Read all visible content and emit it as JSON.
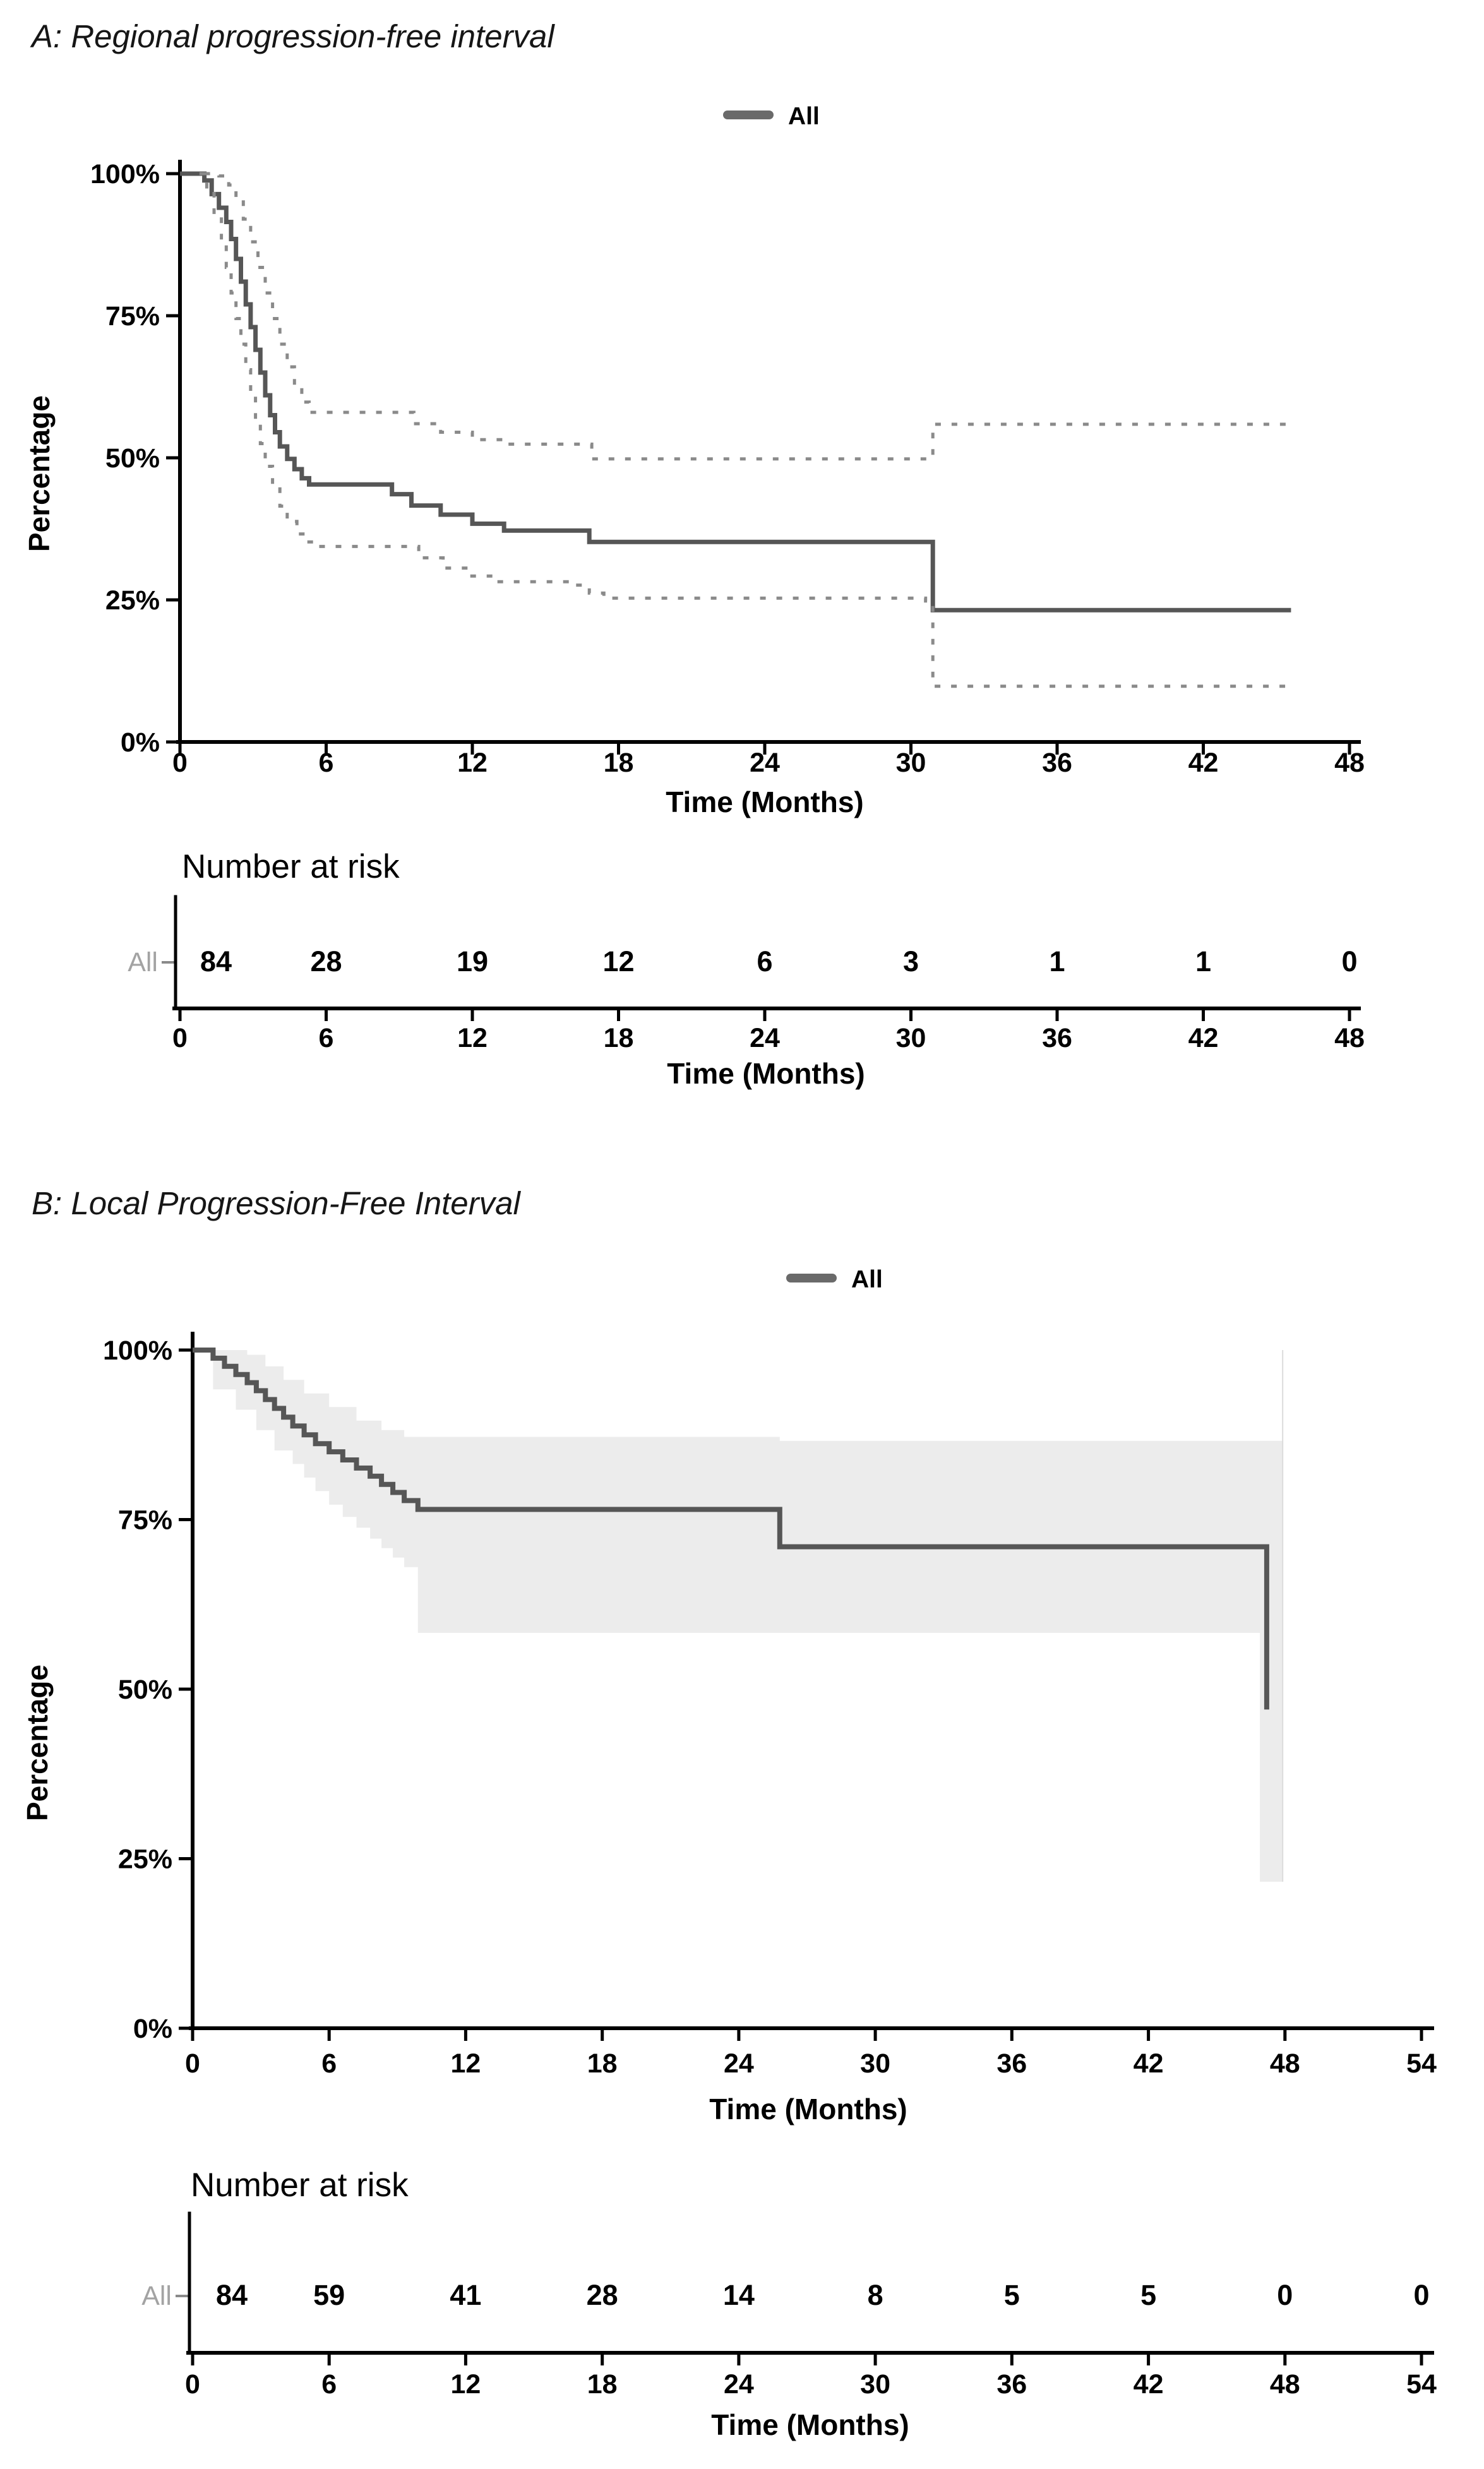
{
  "panels": [
    {
      "panel_label": "A",
      "title": "A: Regional progression-free interval",
      "legend": {
        "label": "All"
      },
      "y_axis": {
        "label": "Percentage",
        "suffix": "%"
      },
      "x_axis": {
        "label": "Time (Months)"
      },
      "risk_table": {
        "header": "Number at risk",
        "row_label": "All"
      }
    },
    {
      "panel_label": "B",
      "title": "B: Local Progression-Free Interval",
      "legend": {
        "label": "All"
      },
      "y_axis": {
        "label": "Percentage",
        "suffix": "%"
      },
      "x_axis": {
        "label": "Time (Months)"
      },
      "risk_table": {
        "header": "Number at risk",
        "row_label": "All"
      }
    }
  ],
  "colors": {
    "main_curve": "#565656",
    "ci_dashed": "#8a8a8a",
    "ci_band": "#ececec",
    "band_edge": "#dcdcdc",
    "risk_row_label": "#a3a3a3",
    "axis": "#000000"
  },
  "chart_data": [
    {
      "type": "line",
      "title": "A: Regional progression-free interval",
      "xlabel": "Time (Months)",
      "ylabel": "Percentage",
      "xlim": [
        0,
        48
      ],
      "ylim": [
        0,
        100
      ],
      "xticks": [
        0,
        6,
        12,
        18,
        24,
        30,
        36,
        42,
        48
      ],
      "yticks": [
        0,
        25,
        50,
        75,
        100
      ],
      "grid": false,
      "legend_position": "top-center",
      "legend": [
        "All"
      ],
      "series": [
        {
          "name": "All (Kaplan-Meier estimate)",
          "style": "solid",
          "points": [
            [
              0,
              100
            ],
            [
              1.0,
              98.8
            ],
            [
              1.3,
              96.4
            ],
            [
              1.6,
              94.0
            ],
            [
              1.9,
              91.5
            ],
            [
              2.1,
              88.5
            ],
            [
              2.3,
              85.0
            ],
            [
              2.5,
              81.0
            ],
            [
              2.7,
              77.0
            ],
            [
              2.9,
              73.0
            ],
            [
              3.1,
              69.0
            ],
            [
              3.3,
              65.0
            ],
            [
              3.5,
              61.0
            ],
            [
              3.7,
              57.5
            ],
            [
              3.9,
              54.5
            ],
            [
              4.1,
              52.0
            ],
            [
              4.4,
              49.8
            ],
            [
              4.7,
              48.0
            ],
            [
              5.0,
              46.4
            ],
            [
              5.3,
              45.3
            ],
            [
              8.7,
              43.6
            ],
            [
              9.5,
              41.6
            ],
            [
              10.7,
              40.0
            ],
            [
              12.0,
              38.4
            ],
            [
              13.3,
              37.2
            ],
            [
              16.8,
              35.2
            ],
            [
              30.6,
              35.2
            ],
            [
              30.9,
              23.2
            ],
            [
              45.6,
              23.2
            ]
          ]
        },
        {
          "name": "95% CI upper",
          "style": "dashed",
          "points": [
            [
              1.0,
              100
            ],
            [
              1.6,
              99.6
            ],
            [
              2.0,
              98.0
            ],
            [
              2.3,
              95.5
            ],
            [
              2.6,
              92.0
            ],
            [
              2.9,
              88.0
            ],
            [
              3.2,
              83.5
            ],
            [
              3.5,
              79.0
            ],
            [
              3.8,
              74.5
            ],
            [
              4.1,
              70.0
            ],
            [
              4.4,
              66.0
            ],
            [
              4.7,
              62.5
            ],
            [
              5.0,
              59.8
            ],
            [
              5.3,
              58.0
            ],
            [
              8.8,
              58.0
            ],
            [
              9.6,
              56.0
            ],
            [
              10.7,
              54.5
            ],
            [
              12.0,
              53.2
            ],
            [
              13.3,
              52.4
            ],
            [
              16.4,
              52.4
            ],
            [
              16.9,
              49.8
            ],
            [
              30.6,
              49.8
            ],
            [
              30.9,
              55.9
            ],
            [
              45.6,
              55.9
            ]
          ]
        },
        {
          "name": "95% CI lower",
          "style": "dashed",
          "points": [
            [
              0.8,
              100
            ],
            [
              1.1,
              96.5
            ],
            [
              1.4,
              92.5
            ],
            [
              1.7,
              88.0
            ],
            [
              1.9,
              83.5
            ],
            [
              2.1,
              79.0
            ],
            [
              2.3,
              74.5
            ],
            [
              2.5,
              70.0
            ],
            [
              2.7,
              65.5
            ],
            [
              2.9,
              61.0
            ],
            [
              3.1,
              56.5
            ],
            [
              3.3,
              52.5
            ],
            [
              3.5,
              48.5
            ],
            [
              3.8,
              45.0
            ],
            [
              4.1,
              41.5
            ],
            [
              4.4,
              38.8
            ],
            [
              4.8,
              36.6
            ],
            [
              5.2,
              35.2
            ],
            [
              5.6,
              34.4
            ],
            [
              9.0,
              34.4
            ],
            [
              9.8,
              32.4
            ],
            [
              10.8,
              30.6
            ],
            [
              11.9,
              29.2
            ],
            [
              13.0,
              28.2
            ],
            [
              16.2,
              27.6
            ],
            [
              16.8,
              26.2
            ],
            [
              17.4,
              25.3
            ],
            [
              30.6,
              24.8
            ],
            [
              30.9,
              9.8
            ],
            [
              45.6,
              9.8
            ]
          ]
        }
      ],
      "number_at_risk": {
        "header": "Number at risk",
        "row_label": "All",
        "times": [
          0,
          6,
          12,
          18,
          24,
          30,
          36,
          42,
          48
        ],
        "values": [
          84,
          28,
          19,
          12,
          6,
          3,
          1,
          1,
          0
        ]
      }
    },
    {
      "type": "line",
      "title": "B: Local Progression-Free Interval",
      "xlabel": "Time (Months)",
      "ylabel": "Percentage",
      "xlim": [
        0,
        54
      ],
      "ylim": [
        0,
        100
      ],
      "xticks": [
        0,
        6,
        12,
        18,
        24,
        30,
        36,
        42,
        48,
        54
      ],
      "yticks": [
        0,
        25,
        50,
        75,
        100
      ],
      "grid": false,
      "legend_position": "top-center",
      "legend": [
        "All"
      ],
      "series": [
        {
          "name": "All (Kaplan-Meier estimate)",
          "style": "solid",
          "points": [
            [
              0,
              100
            ],
            [
              0.9,
              98.8
            ],
            [
              1.4,
              97.6
            ],
            [
              1.9,
              96.4
            ],
            [
              2.4,
              95.2
            ],
            [
              2.8,
              94.0
            ],
            [
              3.2,
              92.7
            ],
            [
              3.6,
              91.4
            ],
            [
              4.0,
              90.1
            ],
            [
              4.4,
              88.8
            ],
            [
              4.9,
              87.5
            ],
            [
              5.4,
              86.2
            ],
            [
              6.0,
              85.0
            ],
            [
              6.6,
              83.8
            ],
            [
              7.2,
              82.6
            ],
            [
              7.8,
              81.4
            ],
            [
              8.3,
              80.2
            ],
            [
              8.8,
              79.0
            ],
            [
              9.3,
              77.8
            ],
            [
              9.9,
              76.5
            ],
            [
              25.8,
              71.0
            ],
            [
              47.2,
              47.0
            ]
          ]
        }
      ],
      "band": {
        "name": "95% CI band",
        "upper": [
          [
            0.9,
            100
          ],
          [
            2.4,
            99.3
          ],
          [
            3.2,
            97.6
          ],
          [
            4.0,
            95.6
          ],
          [
            4.9,
            93.6
          ],
          [
            6.0,
            91.6
          ],
          [
            7.2,
            89.6
          ],
          [
            8.3,
            88.2
          ],
          [
            9.3,
            87.2
          ],
          [
            25.8,
            86.6
          ],
          [
            47.9,
            86.6
          ]
        ],
        "lower": [
          [
            0.9,
            97.2
          ],
          [
            1.9,
            94.2
          ],
          [
            2.8,
            91.2
          ],
          [
            3.6,
            88.2
          ],
          [
            4.4,
            85.2
          ],
          [
            4.9,
            83.2
          ],
          [
            5.4,
            81.2
          ],
          [
            6.0,
            79.2
          ],
          [
            6.6,
            77.2
          ],
          [
            7.2,
            75.4
          ],
          [
            7.8,
            73.8
          ],
          [
            8.3,
            72.2
          ],
          [
            8.8,
            70.8
          ],
          [
            9.3,
            69.4
          ],
          [
            9.9,
            68.0
          ],
          [
            25.8,
            58.3
          ],
          [
            47.9,
            58.3
          ]
        ],
        "end_strip": {
          "x": [
            46.9,
            47.9
          ],
          "y": [
            21.6,
            86.6
          ]
        }
      },
      "number_at_risk": {
        "header": "Number at risk",
        "row_label": "All",
        "times": [
          0,
          6,
          12,
          18,
          24,
          30,
          36,
          42,
          48,
          54
        ],
        "values": [
          84,
          59,
          41,
          28,
          14,
          8,
          5,
          5,
          0,
          0
        ]
      }
    }
  ]
}
